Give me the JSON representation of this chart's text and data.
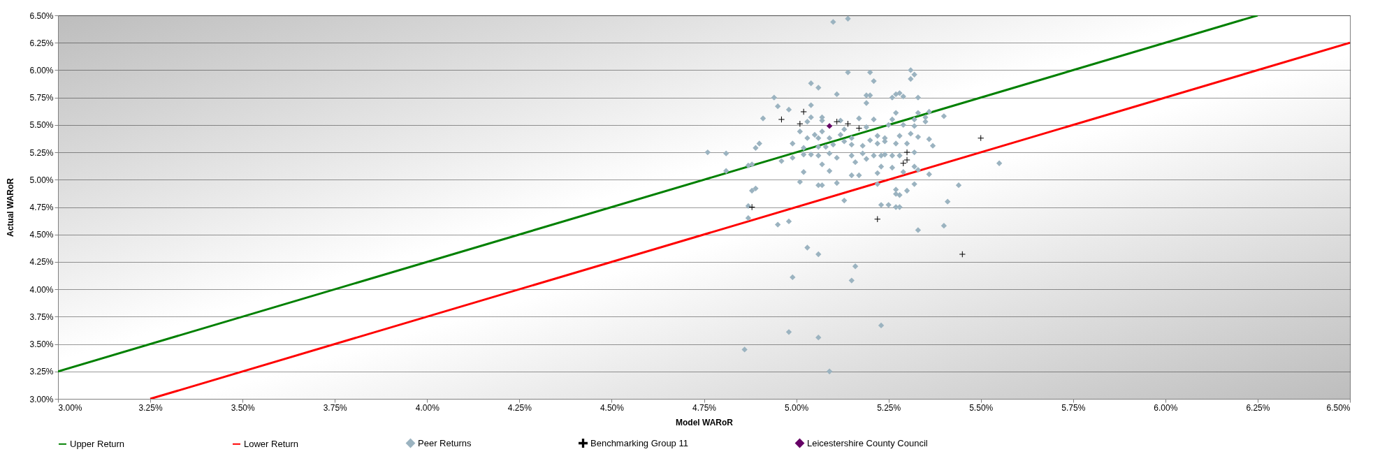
{
  "chart_data": {
    "type": "scatter",
    "xlabel": "Model WARoR",
    "ylabel": "Actual WARoR",
    "xlim": [
      3.0,
      6.5
    ],
    "ylim": [
      3.0,
      6.5
    ],
    "xticks": [
      {
        "value": 3.0,
        "label": "3.00%"
      },
      {
        "value": 3.25,
        "label": "3.25%"
      },
      {
        "value": 3.5,
        "label": "3.50%"
      },
      {
        "value": 3.75,
        "label": "3.75%"
      },
      {
        "value": 4.0,
        "label": "4.00%"
      },
      {
        "value": 4.25,
        "label": "4.25%"
      },
      {
        "value": 4.5,
        "label": "4.50%"
      },
      {
        "value": 4.75,
        "label": "4.75%"
      },
      {
        "value": 5.0,
        "label": "5.00%"
      },
      {
        "value": 5.25,
        "label": "5.25%"
      },
      {
        "value": 5.5,
        "label": "5.50%"
      },
      {
        "value": 5.75,
        "label": "5.75%"
      },
      {
        "value": 6.0,
        "label": "6.00%"
      },
      {
        "value": 6.25,
        "label": "6.25%"
      },
      {
        "value": 6.5,
        "label": "6.50%"
      }
    ],
    "yticks": [
      {
        "value": 3.0,
        "label": "3.00%"
      },
      {
        "value": 3.25,
        "label": "3.25%"
      },
      {
        "value": 3.5,
        "label": "3.50%"
      },
      {
        "value": 3.75,
        "label": "3.75%"
      },
      {
        "value": 4.0,
        "label": "4.00%"
      },
      {
        "value": 4.25,
        "label": "4.25%"
      },
      {
        "value": 4.5,
        "label": "4.50%"
      },
      {
        "value": 4.75,
        "label": "4.75%"
      },
      {
        "value": 5.0,
        "label": "5.00%"
      },
      {
        "value": 5.25,
        "label": "5.25%"
      },
      {
        "value": 5.5,
        "label": "5.50%"
      },
      {
        "value": 5.75,
        "label": "5.75%"
      },
      {
        "value": 6.0,
        "label": "6.00%"
      },
      {
        "value": 6.25,
        "label": "6.25%"
      },
      {
        "value": 6.5,
        "label": "6.50%"
      }
    ],
    "grid": "y",
    "legend": "bottom",
    "series": [
      {
        "name": "Upper Return",
        "type": "line",
        "color": "#008000",
        "x": [
          3.0,
          6.25
        ],
        "values": [
          3.25,
          6.5
        ]
      },
      {
        "name": "Lower Return",
        "type": "line",
        "color": "#ff0000",
        "x": [
          3.25,
          6.5
        ],
        "values": [
          3.0,
          6.25
        ]
      },
      {
        "name": "Peer Returns",
        "type": "scatter",
        "marker": "diamond",
        "color": "#9bb3c0",
        "x": [
          5.1,
          5.14,
          5.14,
          5.2,
          5.31,
          5.32,
          5.31,
          5.04,
          5.06,
          5.21,
          5.11,
          5.19,
          5.2,
          5.26,
          5.27,
          5.28,
          5.29,
          5.33,
          5.19,
          4.94,
          4.95,
          4.98,
          5.04,
          4.91,
          5.04,
          5.03,
          5.07,
          5.07,
          5.12,
          5.17,
          5.21,
          5.27,
          5.26,
          5.33,
          5.32,
          5.35,
          5.36,
          5.4,
          5.35,
          5.29,
          5.32,
          5.19,
          5.25,
          5.01,
          5.03,
          5.05,
          5.07,
          5.06,
          5.09,
          5.12,
          5.13,
          5.15,
          5.22,
          5.24,
          5.28,
          5.31,
          5.33,
          4.99,
          5.02,
          5.06,
          5.08,
          5.1,
          5.13,
          5.15,
          5.18,
          5.2,
          5.22,
          5.24,
          5.27,
          5.3,
          5.36,
          5.37,
          4.9,
          4.89,
          4.76,
          4.81,
          5.02,
          5.04,
          5.06,
          5.09,
          5.11,
          5.15,
          5.18,
          5.19,
          5.21,
          5.23,
          5.24,
          5.26,
          5.28,
          5.32,
          4.96,
          4.99,
          5.07,
          5.16,
          5.23,
          5.26,
          4.81,
          4.87,
          4.88,
          5.02,
          5.09,
          5.22,
          5.29,
          5.32,
          5.33,
          5.36,
          5.55,
          5.15,
          5.17,
          5.01,
          5.06,
          5.07,
          5.11,
          5.22,
          5.32,
          5.44,
          5.27,
          5.3,
          4.88,
          4.89,
          5.27,
          5.28,
          5.13,
          4.87,
          5.23,
          5.25,
          5.27,
          5.28,
          5.41,
          4.87,
          4.95,
          4.98,
          5.33,
          5.4,
          5.03,
          5.06,
          5.16,
          4.99,
          5.15,
          5.23,
          4.98,
          5.06,
          4.86,
          5.09
        ],
        "values": [
          6.44,
          6.47,
          5.98,
          5.98,
          6.0,
          5.96,
          5.92,
          5.88,
          5.84,
          5.9,
          5.78,
          5.77,
          5.77,
          5.75,
          5.78,
          5.79,
          5.76,
          5.75,
          5.7,
          5.75,
          5.67,
          5.64,
          5.68,
          5.56,
          5.57,
          5.53,
          5.57,
          5.54,
          5.54,
          5.56,
          5.55,
          5.61,
          5.55,
          5.61,
          5.55,
          5.57,
          5.62,
          5.58,
          5.53,
          5.5,
          5.49,
          5.48,
          5.5,
          5.44,
          5.38,
          5.41,
          5.44,
          5.38,
          5.38,
          5.41,
          5.46,
          5.38,
          5.4,
          5.38,
          5.4,
          5.42,
          5.39,
          5.33,
          5.29,
          5.3,
          5.3,
          5.32,
          5.35,
          5.32,
          5.31,
          5.36,
          5.33,
          5.35,
          5.33,
          5.33,
          5.37,
          5.31,
          5.33,
          5.29,
          5.25,
          5.24,
          5.23,
          5.23,
          5.22,
          5.24,
          5.2,
          5.22,
          5.24,
          5.19,
          5.22,
          5.22,
          5.23,
          5.22,
          5.22,
          5.25,
          5.17,
          5.2,
          5.14,
          5.16,
          5.12,
          5.11,
          5.08,
          5.13,
          5.14,
          5.07,
          5.08,
          5.06,
          5.07,
          5.12,
          5.09,
          5.05,
          5.15,
          5.04,
          5.04,
          4.98,
          4.95,
          4.95,
          4.97,
          4.96,
          4.96,
          4.95,
          4.91,
          4.9,
          4.9,
          4.92,
          4.87,
          4.86,
          4.81,
          4.76,
          4.77,
          4.77,
          4.75,
          4.75,
          4.8,
          4.65,
          4.59,
          4.62,
          4.54,
          4.58,
          4.38,
          4.32,
          4.21,
          4.11,
          4.08,
          3.67,
          3.61,
          3.56,
          3.45,
          3.25
        ]
      },
      {
        "name": "Benchmarking Group 11",
        "type": "scatter",
        "marker": "cross",
        "color": "#000000",
        "x": [
          5.02,
          4.96,
          5.01,
          5.11,
          5.14,
          5.17,
          5.5,
          5.3,
          5.3,
          5.29,
          4.88,
          5.22,
          5.45
        ],
        "values": [
          5.62,
          5.55,
          5.51,
          5.53,
          5.51,
          5.47,
          5.38,
          5.25,
          5.18,
          5.15,
          4.75,
          4.64,
          4.32
        ]
      },
      {
        "name": "Leicestershire County Council",
        "type": "scatter",
        "marker": "diamond",
        "color": "#660066",
        "x": [
          5.09
        ],
        "values": [
          5.49
        ]
      }
    ]
  }
}
